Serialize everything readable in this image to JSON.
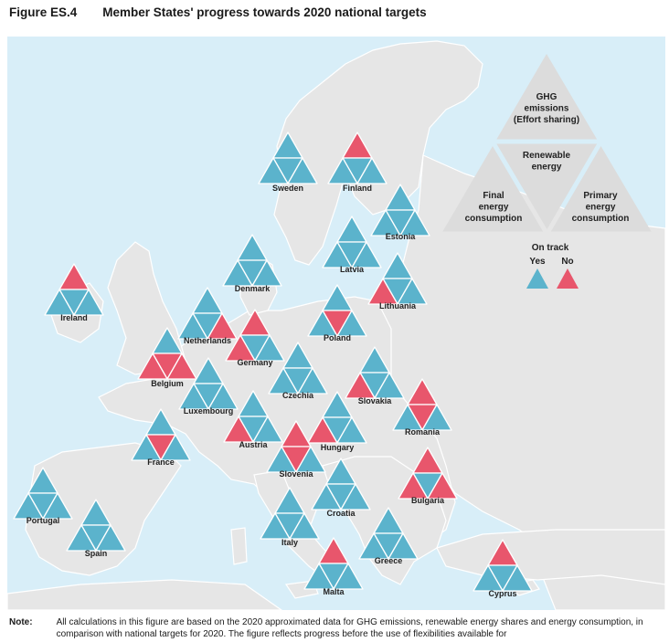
{
  "figure": {
    "number": "Figure ES.4",
    "title": "Member States' progress towards 2020 national targets"
  },
  "legend": {
    "triangle_top": [
      "GHG",
      "emissions",
      "(Effort sharing)"
    ],
    "triangle_middle": [
      "Renewable",
      "energy"
    ],
    "triangle_left": [
      "Final",
      "energy",
      "consumption"
    ],
    "triangle_right": [
      "Primary",
      "energy",
      "consumption"
    ],
    "on_track_title": "On track",
    "yes_label": "Yes",
    "no_label": "No"
  },
  "colors": {
    "yes": "#5bb3cc",
    "no": "#e8566c",
    "legend_gray": "#dcdcdc",
    "sea": "#d8eef8",
    "land": "#e6e6e6"
  },
  "countries": [
    {
      "name": "Sweden",
      "status": [
        "yes",
        "yes",
        "yes",
        "yes"
      ]
    },
    {
      "name": "Finland",
      "status": [
        "no",
        "yes",
        "yes",
        "yes"
      ]
    },
    {
      "name": "Estonia",
      "status": [
        "yes",
        "yes",
        "yes",
        "yes"
      ]
    },
    {
      "name": "Latvia",
      "status": [
        "yes",
        "yes",
        "yes",
        "yes"
      ]
    },
    {
      "name": "Denmark",
      "status": [
        "yes",
        "yes",
        "yes",
        "yes"
      ]
    },
    {
      "name": "Lithuania",
      "status": [
        "yes",
        "yes",
        "no",
        "yes"
      ]
    },
    {
      "name": "Ireland",
      "status": [
        "no",
        "yes",
        "yes",
        "yes"
      ]
    },
    {
      "name": "Netherlands",
      "status": [
        "yes",
        "yes",
        "yes",
        "no"
      ]
    },
    {
      "name": "Poland",
      "status": [
        "yes",
        "no",
        "yes",
        "yes"
      ]
    },
    {
      "name": "Germany",
      "status": [
        "no",
        "yes",
        "no",
        "yes"
      ]
    },
    {
      "name": "Belgium",
      "status": [
        "yes",
        "no",
        "no",
        "no"
      ]
    },
    {
      "name": "Luxembourg",
      "status": [
        "yes",
        "yes",
        "yes",
        "yes"
      ]
    },
    {
      "name": "Czechia",
      "status": [
        "yes",
        "yes",
        "yes",
        "yes"
      ]
    },
    {
      "name": "Slovakia",
      "status": [
        "yes",
        "yes",
        "no",
        "yes"
      ]
    },
    {
      "name": "Romania",
      "status": [
        "no",
        "no",
        "yes",
        "yes"
      ]
    },
    {
      "name": "Austria",
      "status": [
        "yes",
        "yes",
        "no",
        "yes"
      ]
    },
    {
      "name": "Hungary",
      "status": [
        "yes",
        "yes",
        "no",
        "yes"
      ]
    },
    {
      "name": "France",
      "status": [
        "yes",
        "no",
        "yes",
        "yes"
      ]
    },
    {
      "name": "Slovenia",
      "status": [
        "no",
        "no",
        "yes",
        "yes"
      ]
    },
    {
      "name": "Bulgaria",
      "status": [
        "no",
        "yes",
        "no",
        "no"
      ]
    },
    {
      "name": "Portugal",
      "status": [
        "yes",
        "yes",
        "yes",
        "yes"
      ]
    },
    {
      "name": "Croatia",
      "status": [
        "yes",
        "yes",
        "yes",
        "yes"
      ]
    },
    {
      "name": "Spain",
      "status": [
        "yes",
        "yes",
        "yes",
        "yes"
      ]
    },
    {
      "name": "Italy",
      "status": [
        "yes",
        "yes",
        "yes",
        "yes"
      ]
    },
    {
      "name": "Greece",
      "status": [
        "yes",
        "yes",
        "yes",
        "yes"
      ]
    },
    {
      "name": "Malta",
      "status": [
        "no",
        "yes",
        "yes",
        "yes"
      ]
    },
    {
      "name": "Cyprus",
      "status": [
        "no",
        "yes",
        "yes",
        "yes"
      ]
    }
  ],
  "note": {
    "label": "Note:",
    "text": "All calculations in this figure are based on the 2020 approximated data for GHG emissions, renewable energy shares and energy consumption, in comparison with national targets for 2020. The figure reflects progress before the use of flexibilities available for"
  }
}
